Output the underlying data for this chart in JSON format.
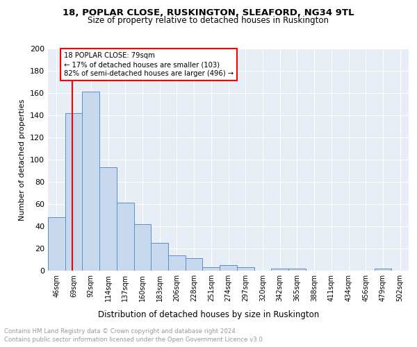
{
  "title1": "18, POPLAR CLOSE, RUSKINGTON, SLEAFORD, NG34 9TL",
  "title2": "Size of property relative to detached houses in Ruskington",
  "xlabel": "Distribution of detached houses by size in Ruskington",
  "ylabel": "Number of detached properties",
  "bar_color": "#c8d9ee",
  "bar_edge_color": "#5b8fc9",
  "bin_labels": [
    "46sqm",
    "69sqm",
    "92sqm",
    "114sqm",
    "137sqm",
    "160sqm",
    "183sqm",
    "206sqm",
    "228sqm",
    "251sqm",
    "274sqm",
    "297sqm",
    "320sqm",
    "342sqm",
    "365sqm",
    "388sqm",
    "411sqm",
    "434sqm",
    "456sqm",
    "479sqm",
    "502sqm"
  ],
  "bar_values": [
    48,
    142,
    161,
    93,
    61,
    42,
    25,
    14,
    11,
    3,
    5,
    3,
    0,
    2,
    2,
    0,
    0,
    0,
    0,
    2,
    0
  ],
  "red_line_x": 79,
  "annotation_text": "18 POPLAR CLOSE: 79sqm\n← 17% of detached houses are smaller (103)\n82% of semi-detached houses are larger (496) →",
  "footer_text1": "Contains HM Land Registry data © Crown copyright and database right 2024.",
  "footer_text2": "Contains public sector information licensed under the Open Government Licence v3.0.",
  "background_color": "#e8eef6",
  "ylim": [
    0,
    200
  ],
  "yticks": [
    0,
    20,
    40,
    60,
    80,
    100,
    120,
    140,
    160,
    180,
    200
  ]
}
